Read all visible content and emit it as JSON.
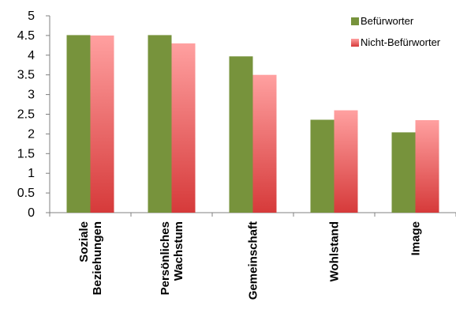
{
  "chart_data": {
    "type": "bar",
    "categories": [
      [
        "Soziale",
        "Beziehungen"
      ],
      [
        "Persönliches",
        "Wachstum"
      ],
      [
        "Gemeinschaft"
      ],
      [
        "Wohlstand"
      ],
      [
        "Image"
      ]
    ],
    "series": [
      {
        "name": "Befürworter",
        "values": [
          4.51,
          4.51,
          3.97,
          2.36,
          2.04
        ]
      },
      {
        "name": "Nicht-Befürworter",
        "values": [
          4.5,
          4.3,
          3.5,
          2.6,
          2.35
        ]
      }
    ],
    "ylim": [
      0,
      5
    ],
    "yticks": [
      "0",
      "0.5",
      "1",
      "1.5",
      "2",
      "2.5",
      "3",
      "3.5",
      "4",
      "4.5",
      "5"
    ],
    "grid": false,
    "legend_position": "top-right",
    "colors": {
      "befuerworter": "#77933c",
      "nicht_befuerworter_top": "#ffa0a0",
      "nicht_befuerworter_bottom": "#d63a3a",
      "axis": "#808080"
    }
  }
}
